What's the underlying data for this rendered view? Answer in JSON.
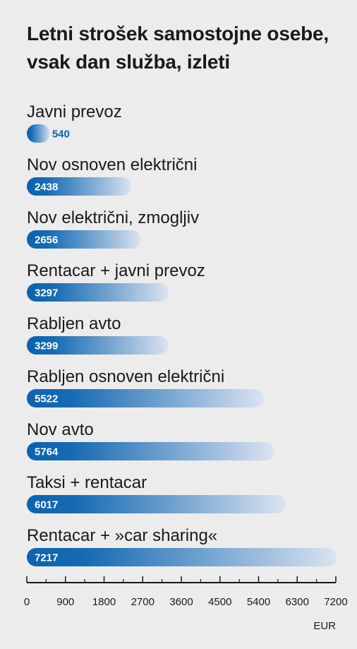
{
  "chart_data": {
    "type": "bar",
    "orientation": "horizontal",
    "title": "Letni strošek samostojne osebe, vsak dan služba, izleti",
    "categories": [
      "Javni prevoz",
      "Nov osnoven električni",
      "Nov električni, zmogljiv",
      "Rentacar + javni prevoz",
      "Rabljen avto",
      "Rabljen osnoven električni",
      "Nov avto",
      "Taksi + rentacar",
      "Rentacar + »car sharing«"
    ],
    "values": [
      540,
      2438,
      2656,
      3297,
      3299,
      5522,
      5764,
      6017,
      7217
    ],
    "xlim": [
      0,
      7200
    ],
    "xticks": [
      0,
      900,
      1800,
      2700,
      3600,
      4500,
      5400,
      6300,
      7200
    ],
    "xunit": "EUR",
    "grid": false,
    "colors": {
      "bar_dark": "#0a63b0",
      "bar_light": "#dbe3f0",
      "value_text_inside": "#ffffff",
      "value_text_outside": "#0a63b0",
      "axis": "#1a1a1a"
    }
  }
}
